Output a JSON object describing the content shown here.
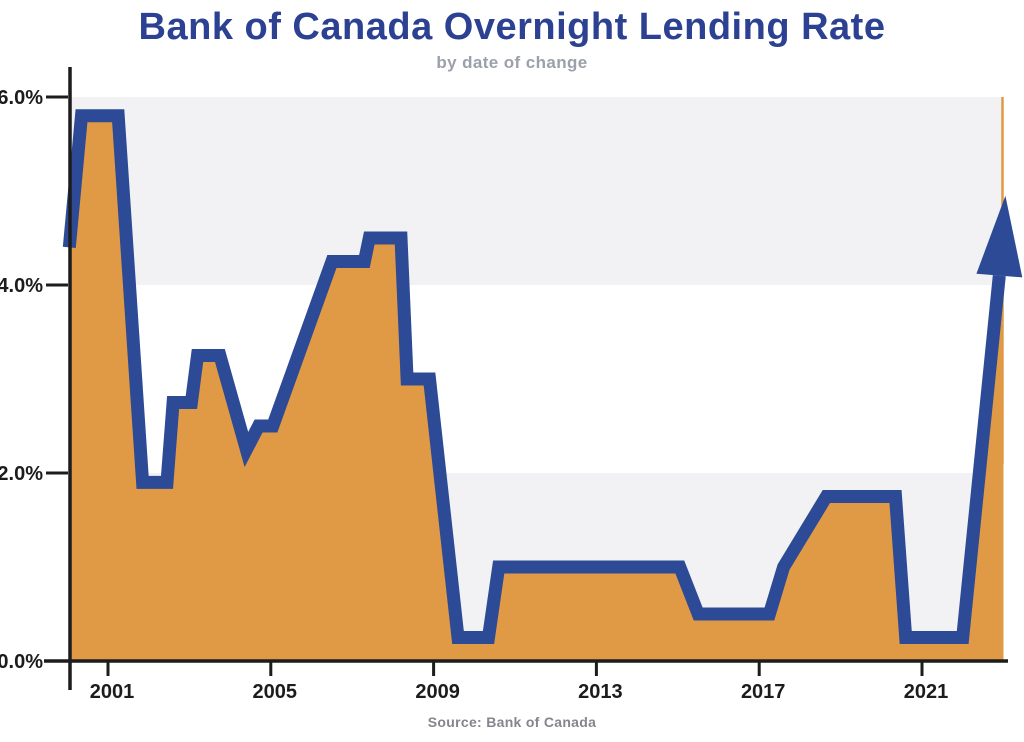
{
  "title": "Bank of Canada Overnight Lending Rate",
  "subtitle": "by date of change",
  "source": "Source: Bank of Canada",
  "colors": {
    "line_blue": "#2d4a96",
    "area_orange": "#e09a46",
    "band_gray": "#f2f2f4",
    "title_navy": "#2c4192",
    "subtitle_gray": "#9ba0ab",
    "source_gray": "#84858e",
    "axis_black": "#1c1c1c"
  },
  "chart_data": {
    "type": "area",
    "title": "Bank of Canada Overnight Lending Rate",
    "subtitle": "by date of change",
    "source": "Source: Bank of Canada",
    "xlabel": "",
    "ylabel": "",
    "x_ticks": [
      2001,
      2005,
      2009,
      2013,
      2017,
      2021
    ],
    "y_ticks": [
      {
        "label": "6.0%",
        "value": 6
      },
      {
        "label": "4.0%",
        "value": 4
      },
      {
        "label": "2.0%",
        "value": 2
      },
      {
        "label": "0.0%",
        "value": 0
      }
    ],
    "xlim": [
      2000.05,
      2023.0
    ],
    "ylim": [
      0,
      6.6
    ],
    "grid": "alternating horizontal bands",
    "shaded_bands_pct": [
      [
        0,
        2
      ],
      [
        4,
        6
      ]
    ],
    "legend": "none",
    "series_name": "Overnight lending rate (%), step by date of change",
    "series": [
      [
        2000.05,
        4.4
      ],
      [
        2000.35,
        5.8
      ],
      [
        2001.25,
        5.8
      ],
      [
        2001.85,
        1.9
      ],
      [
        2002.45,
        1.9
      ],
      [
        2002.6,
        2.75
      ],
      [
        2003.05,
        2.75
      ],
      [
        2003.2,
        3.25
      ],
      [
        2003.75,
        3.25
      ],
      [
        2004.4,
        2.25
      ],
      [
        2004.7,
        2.5
      ],
      [
        2005.05,
        2.5
      ],
      [
        2006.5,
        4.25
      ],
      [
        2007.3,
        4.25
      ],
      [
        2007.42,
        4.5
      ],
      [
        2008.2,
        4.5
      ],
      [
        2008.35,
        3.0
      ],
      [
        2008.9,
        3.0
      ],
      [
        2009.6,
        0.25
      ],
      [
        2010.35,
        0.25
      ],
      [
        2010.6,
        1.0
      ],
      [
        2015.05,
        1.0
      ],
      [
        2015.5,
        0.5
      ],
      [
        2017.25,
        0.5
      ],
      [
        2017.6,
        1.0
      ],
      [
        2018.65,
        1.75
      ],
      [
        2020.35,
        1.75
      ],
      [
        2020.6,
        0.25
      ],
      [
        2022.0,
        0.25
      ],
      [
        2022.9,
        4.1
      ]
    ],
    "arrow_annotation": {
      "tip_year": 2023.05,
      "tip_rate": 4.95
    }
  }
}
